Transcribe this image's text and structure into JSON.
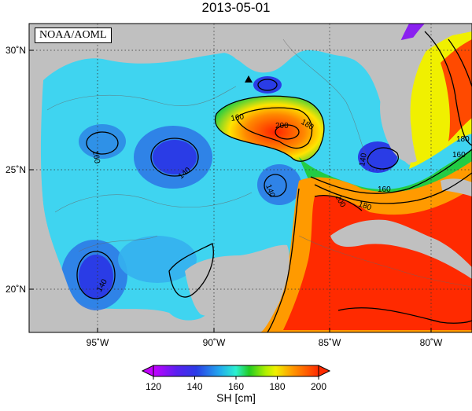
{
  "header": {
    "title": "2013-05-01"
  },
  "map": {
    "credit": "NOAA/AOML",
    "lat_ticks": [
      {
        "value": 30,
        "label": "30˚N"
      },
      {
        "value": 25,
        "label": "25˚N"
      },
      {
        "value": 20,
        "label": "20˚N"
      }
    ],
    "lon_ticks": [
      {
        "value": -95,
        "label": "95˚W"
      },
      {
        "value": -90,
        "label": "90˚W"
      },
      {
        "value": -85,
        "label": "85˚W"
      },
      {
        "value": -80,
        "label": "80˚W"
      }
    ],
    "contour_labels": [
      {
        "id": "a",
        "text": "160"
      },
      {
        "id": "b",
        "text": "180"
      },
      {
        "id": "c",
        "text": "200"
      },
      {
        "id": "d",
        "text": "160"
      },
      {
        "id": "e",
        "text": "140"
      },
      {
        "id": "f",
        "text": "140"
      },
      {
        "id": "g",
        "text": "200"
      },
      {
        "id": "h",
        "text": "180"
      },
      {
        "id": "i",
        "text": "160"
      },
      {
        "id": "j",
        "text": "140"
      },
      {
        "id": "k",
        "text": "140"
      },
      {
        "id": "l",
        "text": "160"
      },
      {
        "id": "m",
        "text": "180"
      }
    ]
  },
  "colorbar": {
    "ticks": [
      "120",
      "140",
      "160",
      "180",
      "200"
    ],
    "range": [
      120,
      200
    ],
    "unit_label": "SH [cm]",
    "colors": [
      "#c400ff",
      "#2a2ae0",
      "#1fb0e6",
      "#2cf0d0",
      "#22cc22",
      "#f0f000",
      "#ff9a00",
      "#ff2a00"
    ]
  },
  "colors": {
    "land": "#c0c0c0",
    "ocean_low": "#2468e0",
    "ocean_mid": "#30c8f0",
    "ocean_high": "#ff2a00"
  }
}
